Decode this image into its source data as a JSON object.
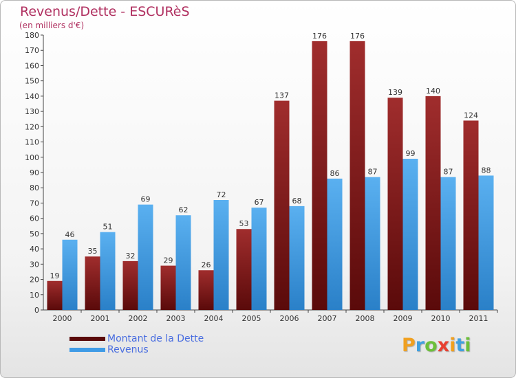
{
  "title": "Revenus/Dette - ESCURèS",
  "subtitle": "(en milliers d'€)",
  "legend": [
    {
      "label": "Montant de la Dette",
      "color": "#8b1a1a"
    },
    {
      "label": "Revenus",
      "color": "#3f9be6"
    }
  ],
  "logo": {
    "letters": [
      "P",
      "r",
      "o",
      "x",
      "i",
      "t",
      "i"
    ],
    "colors": [
      "#f0a020",
      "#3fa0e0",
      "#6cbf3a",
      "#e84030",
      "#f0a020",
      "#3fa0e0",
      "#6cbf3a"
    ]
  },
  "chart_data": {
    "type": "bar",
    "title": "Revenus/Dette - ESCURèS",
    "subtitle": "(en milliers d'€)",
    "categories": [
      "2000",
      "2001",
      "2002",
      "2003",
      "2004",
      "2005",
      "2006",
      "2007",
      "2008",
      "2009",
      "2010",
      "2011"
    ],
    "series": [
      {
        "name": "Montant de la Dette",
        "color": "#8b1a1a",
        "values": [
          19,
          35,
          32,
          29,
          26,
          53,
          137,
          176,
          176,
          139,
          140,
          124
        ]
      },
      {
        "name": "Revenus",
        "color": "#3f9be6",
        "values": [
          46,
          51,
          69,
          62,
          72,
          67,
          68,
          86,
          87,
          99,
          87,
          88
        ]
      }
    ],
    "ylim": [
      0,
      180
    ],
    "ytick_step": 10,
    "grid": false,
    "legend_position": "bottom-left",
    "data_labels": true
  }
}
